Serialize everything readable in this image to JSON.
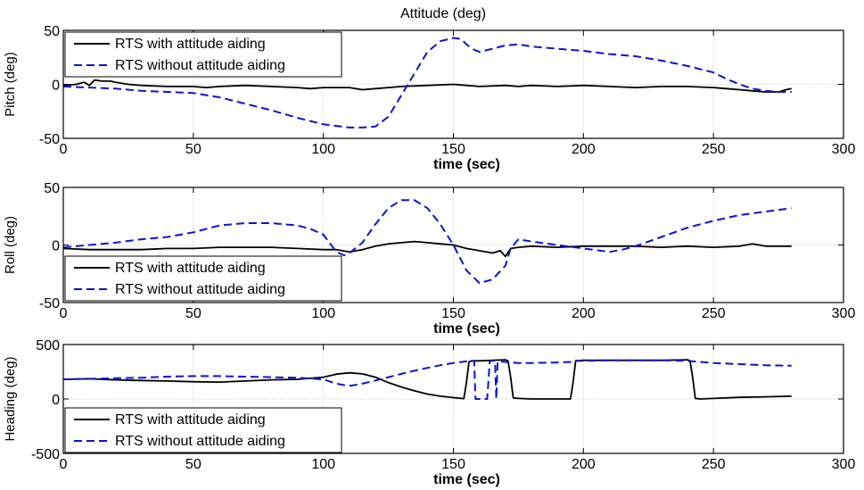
{
  "figure_title": "Attitude (deg)",
  "colors": {
    "with_aiding": "#000000",
    "without_aiding": "#0a14d2",
    "grid": "#c8c8c8"
  },
  "chart_data": [
    {
      "type": "line",
      "title": "Attitude (deg)",
      "xlabel": "time (sec)",
      "ylabel": "Pitch (deg)",
      "xlim": [
        0,
        300
      ],
      "ylim": [
        -50,
        50
      ],
      "xticks": [
        0,
        50,
        100,
        150,
        200,
        250,
        300
      ],
      "yticks": [
        -50,
        0,
        50
      ],
      "grid": true,
      "legend_position": "top-left",
      "series": [
        {
          "name": "RTS with attitude aiding",
          "style": "solid",
          "x": [
            0,
            5,
            8,
            10,
            12,
            15,
            18,
            20,
            25,
            30,
            40,
            50,
            55,
            60,
            70,
            80,
            90,
            95,
            100,
            105,
            110,
            115,
            120,
            125,
            130,
            140,
            150,
            155,
            160,
            170,
            175,
            180,
            190,
            200,
            210,
            220,
            230,
            240,
            250,
            255,
            260,
            265,
            270,
            275,
            278,
            280
          ],
          "y": [
            -1,
            0,
            2,
            -1,
            4,
            3,
            3,
            2,
            0,
            -1,
            -2,
            -2,
            -3,
            -2,
            -1,
            -2,
            -3,
            -4,
            -3,
            -3,
            -3,
            -5,
            -4,
            -3,
            -2,
            -1,
            0,
            -1,
            -2,
            -1,
            -2,
            -1,
            -2,
            -1,
            -2,
            -3,
            -2,
            -2,
            -3,
            -4,
            -5,
            -6,
            -7,
            -7,
            -5,
            -4
          ]
        },
        {
          "name": "RTS without attitude aiding",
          "style": "dashed",
          "x": [
            0,
            10,
            20,
            30,
            40,
            50,
            60,
            70,
            80,
            90,
            100,
            110,
            115,
            120,
            125,
            130,
            135,
            140,
            145,
            150,
            153,
            155,
            158,
            160,
            165,
            170,
            175,
            180,
            190,
            200,
            210,
            220,
            230,
            240,
            250,
            255,
            260,
            265,
            270,
            275,
            280
          ],
          "y": [
            -2,
            -3,
            -4,
            -6,
            -7,
            -8,
            -12,
            -18,
            -24,
            -31,
            -37,
            -40,
            -40,
            -39,
            -30,
            -10,
            10,
            30,
            40,
            43,
            42,
            37,
            32,
            30,
            33,
            36,
            37,
            35,
            33,
            31,
            28,
            26,
            22,
            17,
            11,
            5,
            0,
            -4,
            -6,
            -7,
            -7
          ]
        }
      ]
    },
    {
      "type": "line",
      "title": "",
      "xlabel": "time (sec)",
      "ylabel": "Roll (deg)",
      "xlim": [
        0,
        300
      ],
      "ylim": [
        -50,
        50
      ],
      "xticks": [
        0,
        50,
        100,
        150,
        200,
        250,
        300
      ],
      "yticks": [
        -50,
        0,
        50
      ],
      "grid": true,
      "legend_position": "bottom-left",
      "series": [
        {
          "name": "RTS with attitude aiding",
          "style": "solid",
          "x": [
            0,
            10,
            20,
            30,
            40,
            50,
            60,
            70,
            80,
            90,
            100,
            105,
            110,
            115,
            120,
            125,
            130,
            135,
            140,
            145,
            150,
            155,
            160,
            165,
            168,
            170,
            172,
            175,
            180,
            190,
            200,
            210,
            220,
            230,
            240,
            250,
            260,
            265,
            270,
            280
          ],
          "y": [
            -3,
            -4,
            -4,
            -4,
            -3,
            -3,
            -2,
            -2,
            -2,
            -3,
            -4,
            -4,
            -6,
            -4,
            -1,
            1,
            2,
            3,
            2,
            1,
            0,
            -3,
            -5,
            -7,
            -5,
            -10,
            -3,
            -2,
            -1,
            -2,
            -1,
            -1,
            -1,
            -2,
            -1,
            -2,
            -1,
            1,
            -1,
            -1
          ]
        },
        {
          "name": "RTS without attitude aiding",
          "style": "dashed",
          "x": [
            0,
            10,
            20,
            30,
            40,
            50,
            60,
            70,
            80,
            90,
            95,
            100,
            103,
            105,
            108,
            110,
            115,
            120,
            125,
            130,
            135,
            140,
            145,
            150,
            155,
            160,
            165,
            170,
            172,
            175,
            180,
            190,
            200,
            210,
            215,
            220,
            230,
            240,
            250,
            260,
            270,
            280
          ],
          "y": [
            -2,
            0,
            2,
            5,
            7,
            11,
            17,
            19,
            19,
            17,
            14,
            9,
            0,
            -6,
            -9,
            -7,
            2,
            18,
            32,
            39,
            39,
            32,
            18,
            0,
            -22,
            -33,
            -30,
            -18,
            -3,
            5,
            3,
            0,
            -3,
            -6,
            -4,
            -1,
            7,
            15,
            21,
            26,
            29,
            32
          ]
        }
      ]
    },
    {
      "type": "line",
      "title": "",
      "xlabel": "time (sec)",
      "ylabel": "Heading (deg)",
      "xlim": [
        0,
        300
      ],
      "ylim": [
        -500,
        500
      ],
      "xticks": [
        0,
        50,
        100,
        150,
        200,
        250,
        300
      ],
      "yticks": [
        -500,
        0,
        500
      ],
      "grid": true,
      "legend_position": "bottom-left",
      "series": [
        {
          "name": "RTS with attitude aiding",
          "style": "solid",
          "x": [
            0,
            10,
            20,
            30,
            40,
            50,
            60,
            70,
            80,
            90,
            100,
            105,
            110,
            115,
            120,
            125,
            130,
            135,
            140,
            145,
            150,
            153,
            154,
            155,
            156,
            157,
            160,
            165,
            170,
            171,
            172,
            173,
            175,
            180,
            190,
            195,
            196,
            197,
            200,
            210,
            220,
            230,
            240,
            241,
            242,
            243,
            245,
            250,
            260,
            270,
            280
          ],
          "y": [
            180,
            185,
            175,
            170,
            165,
            158,
            155,
            165,
            175,
            180,
            200,
            228,
            240,
            230,
            200,
            150,
            110,
            75,
            45,
            25,
            12,
            5,
            3,
            150,
            340,
            350,
            350,
            355,
            360,
            350,
            200,
            10,
            5,
            0,
            0,
            0,
            150,
            350,
            355,
            355,
            355,
            355,
            360,
            350,
            200,
            5,
            0,
            5,
            15,
            20,
            25
          ]
        },
        {
          "name": "RTS without attitude aiding",
          "style": "dashed",
          "x": [
            0,
            10,
            20,
            30,
            40,
            50,
            60,
            70,
            80,
            90,
            100,
            105,
            110,
            115,
            120,
            125,
            130,
            135,
            140,
            145,
            150,
            155,
            156,
            157,
            158,
            158.5,
            159,
            163,
            164,
            165,
            166,
            166.5,
            167,
            170,
            175,
            180,
            190,
            195,
            196,
            197,
            200,
            210,
            220,
            230,
            240,
            245,
            250,
            260,
            270,
            280
          ],
          "y": [
            180,
            185,
            190,
            195,
            205,
            210,
            210,
            205,
            200,
            195,
            180,
            140,
            120,
            140,
            170,
            200,
            230,
            260,
            285,
            310,
            330,
            345,
            350,
            350,
            350,
            0,
            0,
            0,
            350,
            350,
            350,
            0,
            345,
            340,
            330,
            330,
            335,
            340,
            345,
            350,
            350,
            355,
            355,
            355,
            350,
            340,
            330,
            320,
            310,
            305
          ]
        }
      ]
    }
  ]
}
